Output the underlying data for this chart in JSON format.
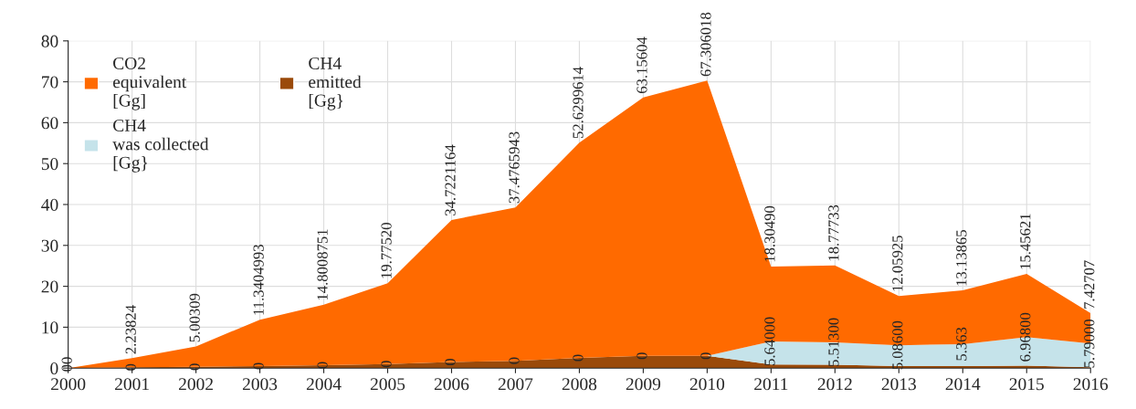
{
  "chart_data": {
    "type": "area",
    "stacked": true,
    "x": [
      2000,
      2001,
      2002,
      2003,
      2004,
      2005,
      2006,
      2007,
      2008,
      2009,
      2010,
      2011,
      2012,
      2013,
      2014,
      2015,
      2016
    ],
    "series": [
      {
        "name": "CH4\nemitted\n[Gg}",
        "color": "#9a4a0a",
        "values": [
          0,
          0.2,
          0.3,
          0.5,
          0.7,
          1.0,
          1.5,
          1.8,
          2.5,
          3.0,
          3.0,
          0.9,
          0.8,
          0.5,
          0.5,
          0.6,
          0.2
        ]
      },
      {
        "name": "CH4\nwas collected\n[Gg}",
        "color": "#c5e3ea",
        "values": [
          0,
          0,
          0,
          0,
          0,
          0,
          0,
          0,
          0,
          0,
          0,
          5.64,
          5.513,
          5.086,
          5.363,
          6.968,
          5.79
        ],
        "value_labels": [
          "0",
          "0",
          "0",
          "0",
          "0",
          "0",
          "0",
          "0",
          "0",
          "0",
          "0",
          "5.64000",
          "5.51300",
          "5.08600",
          "5.363",
          "6.96800",
          "5.79000"
        ]
      },
      {
        "name": "CO2\nequivalent\n[Gg]",
        "color": "#ff6a00",
        "values": [
          0,
          2.23824,
          5.00309,
          11.3404993,
          14.8008751,
          19.7752,
          34.7221164,
          37.4765943,
          52.6299614,
          63.15604,
          67.306018,
          18.3049,
          18.77733,
          12.05925,
          13.13865,
          15.45621,
          7.42707
        ],
        "value_labels": [
          "0",
          "2.23824",
          "5.00309",
          "11.3404993",
          "14.8008751",
          "19.77520",
          "34.7221164",
          "37.4765943",
          "52.6299614",
          "63.15604",
          "67.306018",
          "18.30490",
          "18.77733",
          "12.05925",
          "13.13865",
          "15.45621",
          "7.42707"
        ]
      }
    ],
    "xlim": [
      2000,
      2016
    ],
    "xticks": [
      2000,
      2001,
      2002,
      2003,
      2004,
      2005,
      2006,
      2007,
      2008,
      2009,
      2010,
      2011,
      2012,
      2013,
      2014,
      2015,
      2016
    ],
    "ylim": [
      0,
      80
    ],
    "yticks": [
      0,
      10,
      20,
      30,
      40,
      50,
      60,
      70,
      80
    ],
    "grid": true,
    "legend": "top left"
  }
}
